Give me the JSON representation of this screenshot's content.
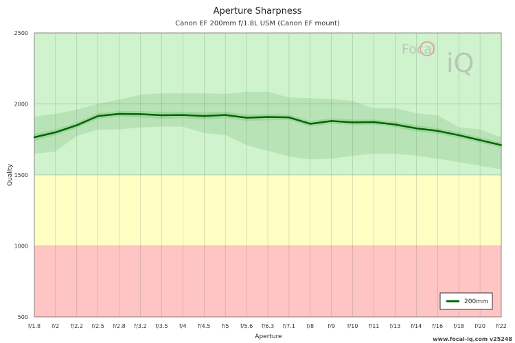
{
  "chart_data": {
    "type": "line",
    "title": "Aperture Sharpness",
    "subtitle": "Canon EF 200mm f/1.8L USM (Canon EF mount)",
    "xlabel": "Aperture",
    "ylabel": "Quality",
    "categories": [
      "f/1.8",
      "f/2",
      "f/2.2",
      "f/2.5",
      "f/2.8",
      "f/3.2",
      "f/3.5",
      "f/4",
      "f/4.5",
      "f/5",
      "f/5.6",
      "f/6.3",
      "f/7.1",
      "f/8",
      "f/9",
      "f/10",
      "f/11",
      "f/13",
      "f/14",
      "f/16",
      "f/18",
      "f/20",
      "f/22"
    ],
    "ylim": [
      500,
      2500
    ],
    "yticks": [
      500,
      1000,
      1500,
      2000,
      2500
    ],
    "zones": [
      {
        "from": 500,
        "to": 1000,
        "color": "#ffc4c4"
      },
      {
        "from": 1000,
        "to": 1500,
        "color": "#ffffc4"
      },
      {
        "from": 1500,
        "to": 2500,
        "color": "#cef3cd"
      }
    ],
    "series": [
      {
        "name": "200mm",
        "color": "#006400",
        "values": [
          1765,
          1800,
          1850,
          1915,
          1930,
          1928,
          1920,
          1922,
          1915,
          1922,
          1903,
          1908,
          1905,
          1860,
          1880,
          1870,
          1872,
          1855,
          1828,
          1810,
          1780,
          1745,
          1710
        ],
        "band_outer_upper": [
          1910,
          1930,
          1960,
          2000,
          2030,
          2065,
          2075,
          2075,
          2075,
          2070,
          2085,
          2085,
          2045,
          2040,
          2035,
          2020,
          1970,
          1970,
          1935,
          1920,
          1835,
          1820,
          1765
        ],
        "band_outer_lower": [
          1650,
          1665,
          1775,
          1820,
          1820,
          1835,
          1840,
          1840,
          1795,
          1780,
          1710,
          1670,
          1630,
          1610,
          1615,
          1635,
          1650,
          1650,
          1635,
          1615,
          1590,
          1565,
          1540
        ],
        "band_inner_upper": [
          1790,
          1820,
          1870,
          1935,
          1950,
          1950,
          1945,
          1945,
          1940,
          1945,
          1925,
          1930,
          1925,
          1880,
          1900,
          1890,
          1890,
          1875,
          1850,
          1830,
          1800,
          1765,
          1730
        ],
        "band_inner_lower": [
          1740,
          1780,
          1830,
          1895,
          1910,
          1905,
          1895,
          1900,
          1890,
          1900,
          1880,
          1885,
          1885,
          1840,
          1860,
          1850,
          1855,
          1835,
          1805,
          1790,
          1760,
          1725,
          1690
        ]
      }
    ],
    "grid": true,
    "legend": "bottom-right"
  },
  "logo": {
    "brand_a": "Focal",
    "brand_b": "iQ"
  },
  "footer": "www.focal-iq.com  v25248",
  "colors": {
    "outer_band": "#a6d6a5",
    "inner_band": "#8fce8e",
    "grid": "#6f6f6f",
    "line": "#006400"
  }
}
